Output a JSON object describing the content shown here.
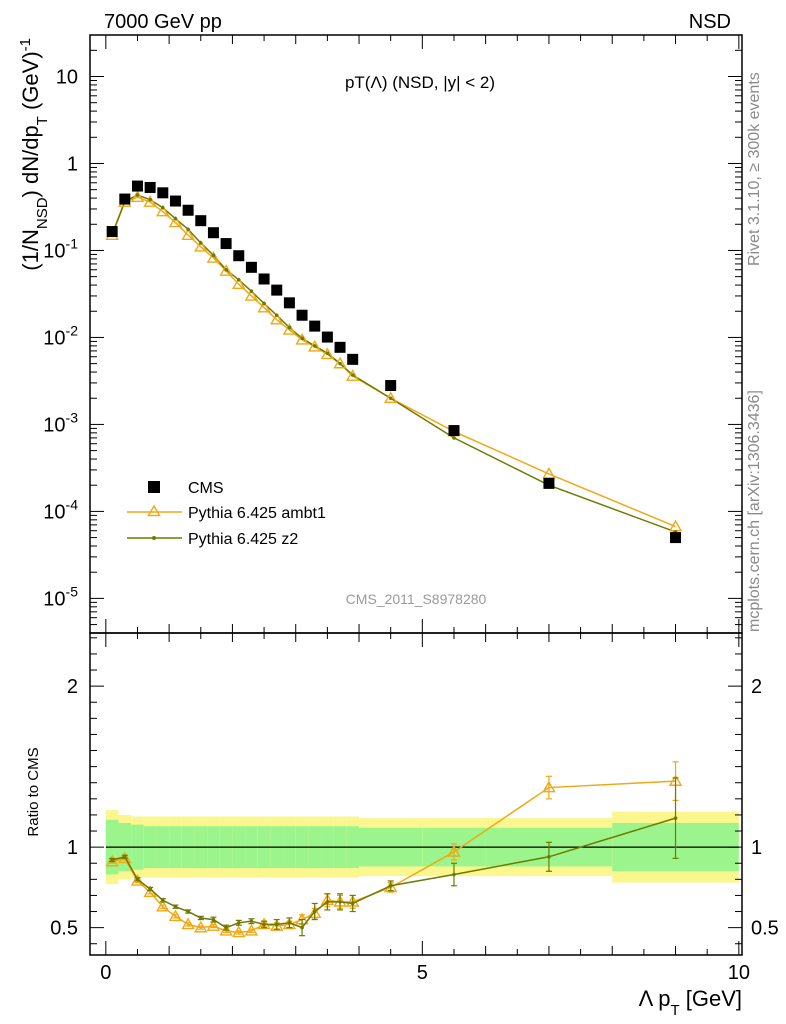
{
  "header": {
    "left_label": "7000 GeV pp",
    "right_label": "NSD"
  },
  "side_notes": {
    "rivet": "Rivet 3.1.10, ≥ 300k events",
    "mcplots": "mcplots.cern.ch [arXiv:1306.3436]"
  },
  "colors": {
    "cms": "#000000",
    "ambt1": "#f0a814",
    "z2": "#6e7a00",
    "band_inner": "#9cf58c",
    "band_outer": "#fbf68d"
  },
  "chart_data": [
    {
      "type": "scatter",
      "panel": "main",
      "title": "pT(Λ) (NSD, |y| < 2)",
      "watermark": "CMS_2011_S8978280",
      "ylabel": "(1/N_NSD) dN/dp_T (GeV)^-1",
      "yscale": "log",
      "ylim": [
        4e-06,
        30
      ],
      "xlim": [
        -0.25,
        10.05
      ],
      "ytick_labels": [
        "10",
        "1",
        "10^-1",
        "10^-2",
        "10^-3",
        "10^-4",
        "10^-5"
      ],
      "legend_position": "lower-left",
      "grid": false,
      "series": [
        {
          "name": "CMS",
          "marker": "square",
          "x": [
            0.1,
            0.3,
            0.5,
            0.7,
            0.9,
            1.1,
            1.3,
            1.5,
            1.7,
            1.9,
            2.1,
            2.3,
            2.5,
            2.7,
            2.9,
            3.1,
            3.3,
            3.5,
            3.7,
            3.9,
            4.5,
            5.5,
            7.0,
            9.0
          ],
          "y": [
            0.165,
            0.39,
            0.55,
            0.53,
            0.46,
            0.37,
            0.29,
            0.22,
            0.16,
            0.12,
            0.087,
            0.064,
            0.047,
            0.035,
            0.025,
            0.018,
            0.0135,
            0.0101,
            0.0077,
            0.0056,
            0.0028,
            0.00085,
            0.00021,
            5e-05
          ]
        },
        {
          "name": "Pythia 6.425 ambt1",
          "marker": "triangle",
          "x": [
            0.1,
            0.3,
            0.5,
            0.7,
            0.9,
            1.1,
            1.3,
            1.5,
            1.7,
            1.9,
            2.1,
            2.3,
            2.5,
            2.7,
            2.9,
            3.1,
            3.3,
            3.5,
            3.7,
            3.9,
            4.5,
            5.5,
            7.0,
            9.0
          ],
          "y": [
            0.15,
            0.36,
            0.41,
            0.36,
            0.28,
            0.21,
            0.15,
            0.11,
            0.082,
            0.058,
            0.041,
            0.03,
            0.022,
            0.016,
            0.0122,
            0.0094,
            0.0078,
            0.0064,
            0.005,
            0.0036,
            0.002,
            0.00083,
            0.00027,
            6.7e-05
          ]
        },
        {
          "name": "Pythia 6.425 z2",
          "marker": "dot",
          "x": [
            0.1,
            0.3,
            0.5,
            0.7,
            0.9,
            1.1,
            1.3,
            1.5,
            1.7,
            1.9,
            2.1,
            2.3,
            2.5,
            2.7,
            2.9,
            3.1,
            3.3,
            3.5,
            3.7,
            3.9,
            4.5,
            5.5,
            7.0,
            9.0
          ],
          "y": [
            0.153,
            0.368,
            0.433,
            0.384,
            0.31,
            0.232,
            0.175,
            0.122,
            0.088,
            0.06,
            0.046,
            0.034,
            0.0245,
            0.018,
            0.013,
            0.0098,
            0.008,
            0.0066,
            0.005,
            0.0037,
            0.002,
            0.0007,
            0.0002,
            5.8e-05
          ]
        }
      ]
    },
    {
      "type": "line",
      "panel": "ratio",
      "ylabel": "Ratio to CMS",
      "xlabel": "Λ p_T [GeV]",
      "ylim": [
        0.33,
        2.33
      ],
      "xlim": [
        -0.25,
        10.05
      ],
      "xtick_labels": [
        "0",
        "5",
        "10"
      ],
      "ytick_labels": [
        "0.5",
        "1",
        "2"
      ],
      "reference_line": 1,
      "bands": {
        "x_edges": [
          0.0,
          0.2,
          0.4,
          0.6,
          0.8,
          1.0,
          1.2,
          1.4,
          1.6,
          1.8,
          2.0,
          2.2,
          2.4,
          2.6,
          2.8,
          3.0,
          3.2,
          3.4,
          3.6,
          3.8,
          4.0,
          5.0,
          6.0,
          8.0,
          10.0
        ],
        "inner_halfwidth": [
          0.17,
          0.15,
          0.14,
          0.13,
          0.13,
          0.13,
          0.13,
          0.13,
          0.13,
          0.13,
          0.13,
          0.13,
          0.13,
          0.13,
          0.13,
          0.13,
          0.13,
          0.13,
          0.13,
          0.13,
          0.12,
          0.12,
          0.12,
          0.15
        ],
        "outer_halfwidth": [
          0.23,
          0.2,
          0.19,
          0.19,
          0.19,
          0.19,
          0.19,
          0.19,
          0.19,
          0.19,
          0.19,
          0.19,
          0.19,
          0.19,
          0.19,
          0.19,
          0.19,
          0.19,
          0.19,
          0.19,
          0.18,
          0.18,
          0.18,
          0.22
        ]
      },
      "series": [
        {
          "name": "Pythia 6.425 ambt1",
          "marker": "triangle",
          "x": [
            0.1,
            0.3,
            0.5,
            0.7,
            0.9,
            1.1,
            1.3,
            1.5,
            1.7,
            1.9,
            2.1,
            2.3,
            2.5,
            2.7,
            2.9,
            3.1,
            3.3,
            3.5,
            3.7,
            3.9,
            4.5,
            5.5,
            7.0,
            9.0
          ],
          "y": [
            0.91,
            0.93,
            0.79,
            0.72,
            0.63,
            0.57,
            0.52,
            0.5,
            0.51,
            0.48,
            0.47,
            0.48,
            0.52,
            0.51,
            0.52,
            0.55,
            0.59,
            0.67,
            0.66,
            0.66,
            0.75,
            0.97,
            1.37,
            1.41
          ],
          "err": [
            0.01,
            0.01,
            0.01,
            0.01,
            0.01,
            0.01,
            0.01,
            0.01,
            0.01,
            0.01,
            0.01,
            0.01,
            0.015,
            0.02,
            0.02,
            0.03,
            0.03,
            0.04,
            0.04,
            0.04,
            0.03,
            0.05,
            0.07,
            0.12
          ]
        },
        {
          "name": "Pythia 6.425 z2",
          "marker": "dot",
          "x": [
            0.1,
            0.3,
            0.5,
            0.7,
            0.9,
            1.1,
            1.3,
            1.5,
            1.7,
            1.9,
            2.1,
            2.3,
            2.5,
            2.7,
            2.9,
            3.1,
            3.3,
            3.5,
            3.7,
            3.9,
            4.5,
            5.5,
            7.0,
            9.0
          ],
          "y": [
            0.92,
            0.94,
            0.8,
            0.74,
            0.67,
            0.63,
            0.6,
            0.56,
            0.55,
            0.5,
            0.53,
            0.54,
            0.52,
            0.52,
            0.53,
            0.5,
            0.6,
            0.66,
            0.66,
            0.65,
            0.76,
            0.83,
            0.94,
            1.18
          ],
          "err": [
            0.01,
            0.01,
            0.01,
            0.01,
            0.01,
            0.01,
            0.01,
            0.01,
            0.015,
            0.015,
            0.015,
            0.015,
            0.02,
            0.03,
            0.03,
            0.05,
            0.05,
            0.05,
            0.05,
            0.05,
            0.03,
            0.07,
            0.09,
            0.25
          ]
        }
      ]
    }
  ]
}
